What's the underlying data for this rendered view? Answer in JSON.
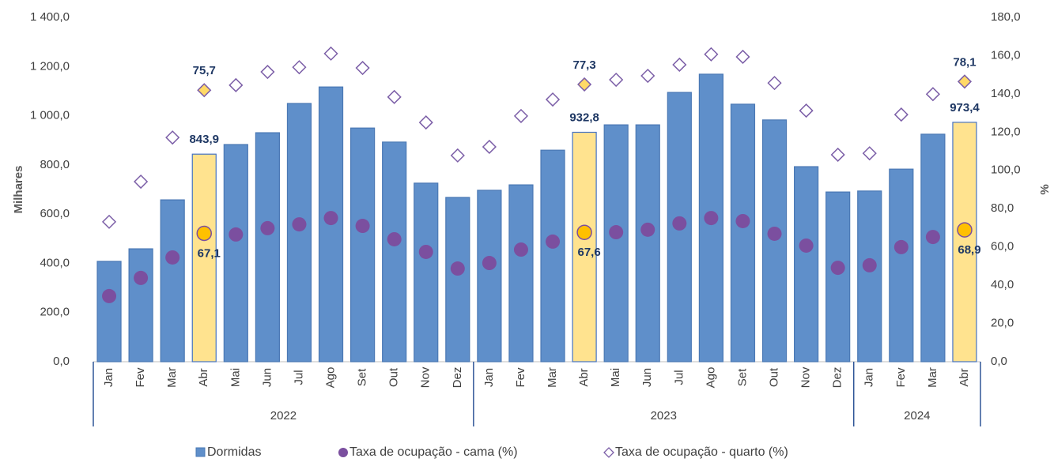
{
  "chart_data": {
    "type": "bar_line",
    "y_label": "Milhares",
    "y2_label": "%",
    "categories": [
      "Jan",
      "Fev",
      "Mar",
      "Abr",
      "Mai",
      "Jun",
      "Jul",
      "Ago",
      "Set",
      "Out",
      "Nov",
      "Dez",
      "Jan",
      "Fev",
      "Mar",
      "Abr",
      "Mai",
      "Jun",
      "Jul",
      "Ago",
      "Set",
      "Out",
      "Nov",
      "Dez",
      "Jan",
      "Fev",
      "Mar",
      "Abr"
    ],
    "groups": [
      {
        "label": "2022",
        "start": 0,
        "end": 11
      },
      {
        "label": "2023",
        "start": 12,
        "end": 23
      },
      {
        "label": "2024",
        "start": 24,
        "end": 27
      }
    ],
    "ylim": [
      0,
      1400
    ],
    "yticks": [
      {
        "value": 0,
        "label": "0,0"
      },
      {
        "value": 200,
        "label": "200,0"
      },
      {
        "value": 400,
        "label": "400,0"
      },
      {
        "value": 600,
        "label": "600,0"
      },
      {
        "value": 800,
        "label": "800,0"
      },
      {
        "value": 1000,
        "label": "1 000,0"
      },
      {
        "value": 1200,
        "label": "1 200,0"
      },
      {
        "value": 1400,
        "label": "1 400,0"
      }
    ],
    "y2lim": [
      0,
      180
    ],
    "y2ticks": [
      {
        "value": 0,
        "label": "0,0"
      },
      {
        "value": 20,
        "label": "20,0"
      },
      {
        "value": 40,
        "label": "40,0"
      },
      {
        "value": 60,
        "label": "60,0"
      },
      {
        "value": 80,
        "label": "80,0"
      },
      {
        "value": 100,
        "label": "100,0"
      },
      {
        "value": 120,
        "label": "120,0"
      },
      {
        "value": 140,
        "label": "140,0"
      },
      {
        "value": 160,
        "label": "160,0"
      },
      {
        "value": 180,
        "label": "180,0"
      }
    ],
    "y3lim": [
      0,
      96
    ],
    "legend": "bottom",
    "series": [
      {
        "name": "Dormidas",
        "kind": "bar",
        "color": "#5f8fca",
        "highlight_color": "#ffe38f",
        "highlight": [
          3,
          15,
          27
        ],
        "values": [
          408,
          459,
          658,
          843.9,
          883,
          931,
          1050,
          1117,
          950,
          893,
          726,
          668,
          697,
          719,
          860,
          932.8,
          963,
          963,
          1095,
          1169,
          1047,
          983,
          793,
          690,
          694,
          783,
          925,
          973.4
        ],
        "value_labels": [
          null,
          null,
          null,
          "843,9",
          null,
          null,
          null,
          null,
          null,
          null,
          null,
          null,
          null,
          null,
          null,
          "932,8",
          null,
          null,
          null,
          null,
          null,
          null,
          null,
          null,
          null,
          null,
          null,
          "973,4"
        ]
      },
      {
        "name": "Taxa de ocupação - cama (%)",
        "kind": "circle",
        "axis": "y2",
        "color": "#7b4f9f",
        "highlight_color": "#ffc000",
        "highlight": [
          3,
          15,
          27
        ],
        "values": [
          34.3,
          43.8,
          54.5,
          67.1,
          66.5,
          69.8,
          71.8,
          75.1,
          71.0,
          64.0,
          57.4,
          48.7,
          51.6,
          58.6,
          62.8,
          67.6,
          67.7,
          69.0,
          72.3,
          75.1,
          73.5,
          66.9,
          60.7,
          49.1,
          50.4,
          59.9,
          65.2,
          68.9
        ],
        "value_labels": [
          null,
          null,
          null,
          "67,1",
          null,
          null,
          null,
          null,
          null,
          null,
          null,
          null,
          null,
          null,
          null,
          "67,6",
          null,
          null,
          null,
          null,
          null,
          null,
          null,
          null,
          null,
          null,
          null,
          "68,9"
        ]
      },
      {
        "name": "Taxa de ocupação - quarto (%)",
        "kind": "diamond",
        "axis": "y3",
        "color": "#7b5ea7",
        "highlight_color": "#ffd966",
        "highlight": [
          3,
          15,
          27
        ],
        "values": [
          39.0,
          50.2,
          62.5,
          75.7,
          77.1,
          80.8,
          82.1,
          85.9,
          81.9,
          73.8,
          66.7,
          57.5,
          59.9,
          68.5,
          73.1,
          77.3,
          78.6,
          79.7,
          82.8,
          85.7,
          85.0,
          77.7,
          70.0,
          57.7,
          58.1,
          68.9,
          74.6,
          78.1
        ],
        "value_labels": [
          null,
          null,
          null,
          "75,7",
          null,
          null,
          null,
          null,
          null,
          null,
          null,
          null,
          null,
          null,
          null,
          "77,3",
          null,
          null,
          null,
          null,
          null,
          null,
          null,
          null,
          null,
          null,
          null,
          "78,1"
        ]
      }
    ]
  }
}
